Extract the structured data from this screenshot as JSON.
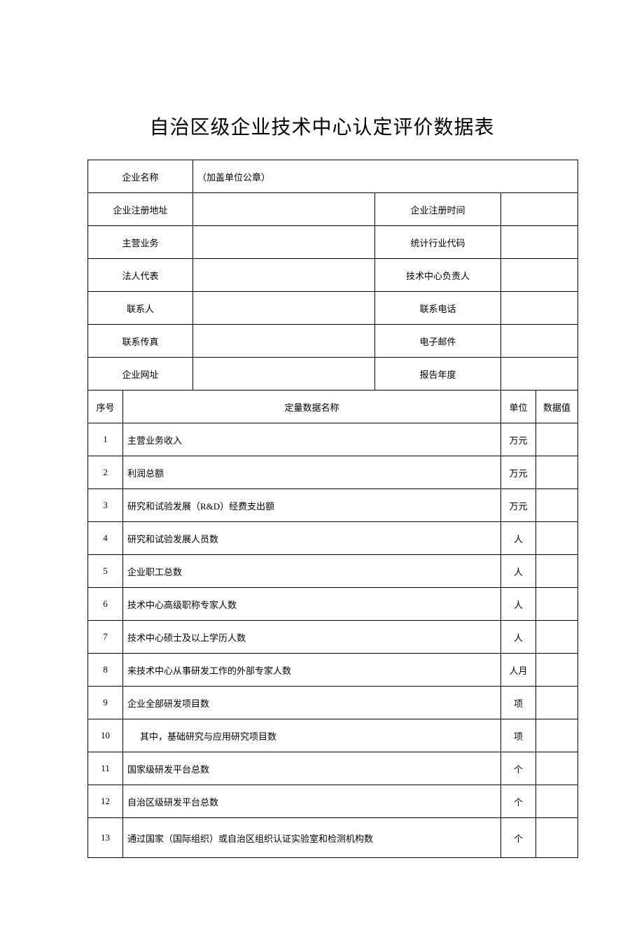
{
  "title": "自治区级企业技术中心认定评价数据表",
  "header": {
    "company_name_label": "企业名称",
    "company_name_value": "（加盖单位公章）",
    "reg_address_label": "企业注册地址",
    "reg_address_value": "",
    "reg_time_label": "企业注册时间",
    "reg_time_value": "",
    "main_biz_label": "主营业务",
    "main_biz_value": "",
    "industry_code_label": "统计行业代码",
    "industry_code_value": "",
    "legal_rep_label": "法人代表",
    "legal_rep_value": "",
    "tech_head_label": "技术中心负责人",
    "tech_head_value": "",
    "contact_label": "联系人",
    "contact_value": "",
    "phone_label": "联系电话",
    "phone_value": "",
    "fax_label": "联系传真",
    "fax_value": "",
    "email_label": "电子邮件",
    "email_value": "",
    "website_label": "企业网址",
    "website_value": "",
    "report_year_label": "报告年度",
    "report_year_value": ""
  },
  "columns": {
    "seq": "序号",
    "name": "定量数据名称",
    "unit": "单位",
    "value": "数据值"
  },
  "rows": [
    {
      "seq": "1",
      "name": "主营业务收入",
      "unit": "万元",
      "value": "",
      "indent": false
    },
    {
      "seq": "2",
      "name": "利润总额",
      "unit": "万元",
      "value": "",
      "indent": false
    },
    {
      "seq": "3",
      "name": "研究和试验发展（R&D）经费支出额",
      "unit": "万元",
      "value": "",
      "indent": false
    },
    {
      "seq": "4",
      "name": "研究和试验发展人员数",
      "unit": "人",
      "value": "",
      "indent": false
    },
    {
      "seq": "5",
      "name": "企业职工总数",
      "unit": "人",
      "value": "",
      "indent": false
    },
    {
      "seq": "6",
      "name": "技术中心高级职称专家人数",
      "unit": "人",
      "value": "",
      "indent": false
    },
    {
      "seq": "7",
      "name": "技术中心硕士及以上学历人数",
      "unit": "人",
      "value": "",
      "indent": false
    },
    {
      "seq": "8",
      "name": "来技术中心从事研发工作的外部专家人数",
      "unit": "人月",
      "value": "",
      "indent": false
    },
    {
      "seq": "9",
      "name": "企业全部研发项目数",
      "unit": "项",
      "value": "",
      "indent": false
    },
    {
      "seq": "10",
      "name": "其中，基础研究与应用研究项目数",
      "unit": "项",
      "value": "",
      "indent": true
    },
    {
      "seq": "11",
      "name": "国家级研发平台总数",
      "unit": "个",
      "value": "",
      "indent": false
    },
    {
      "seq": "12",
      "name": "自治区级研发平台总数",
      "unit": "个",
      "value": "",
      "indent": false
    },
    {
      "seq": "13",
      "name": "通过国家（国际组织）或自治区组织认证实验室和检测机构数",
      "unit": "个",
      "value": "",
      "indent": false,
      "taller": true
    }
  ]
}
